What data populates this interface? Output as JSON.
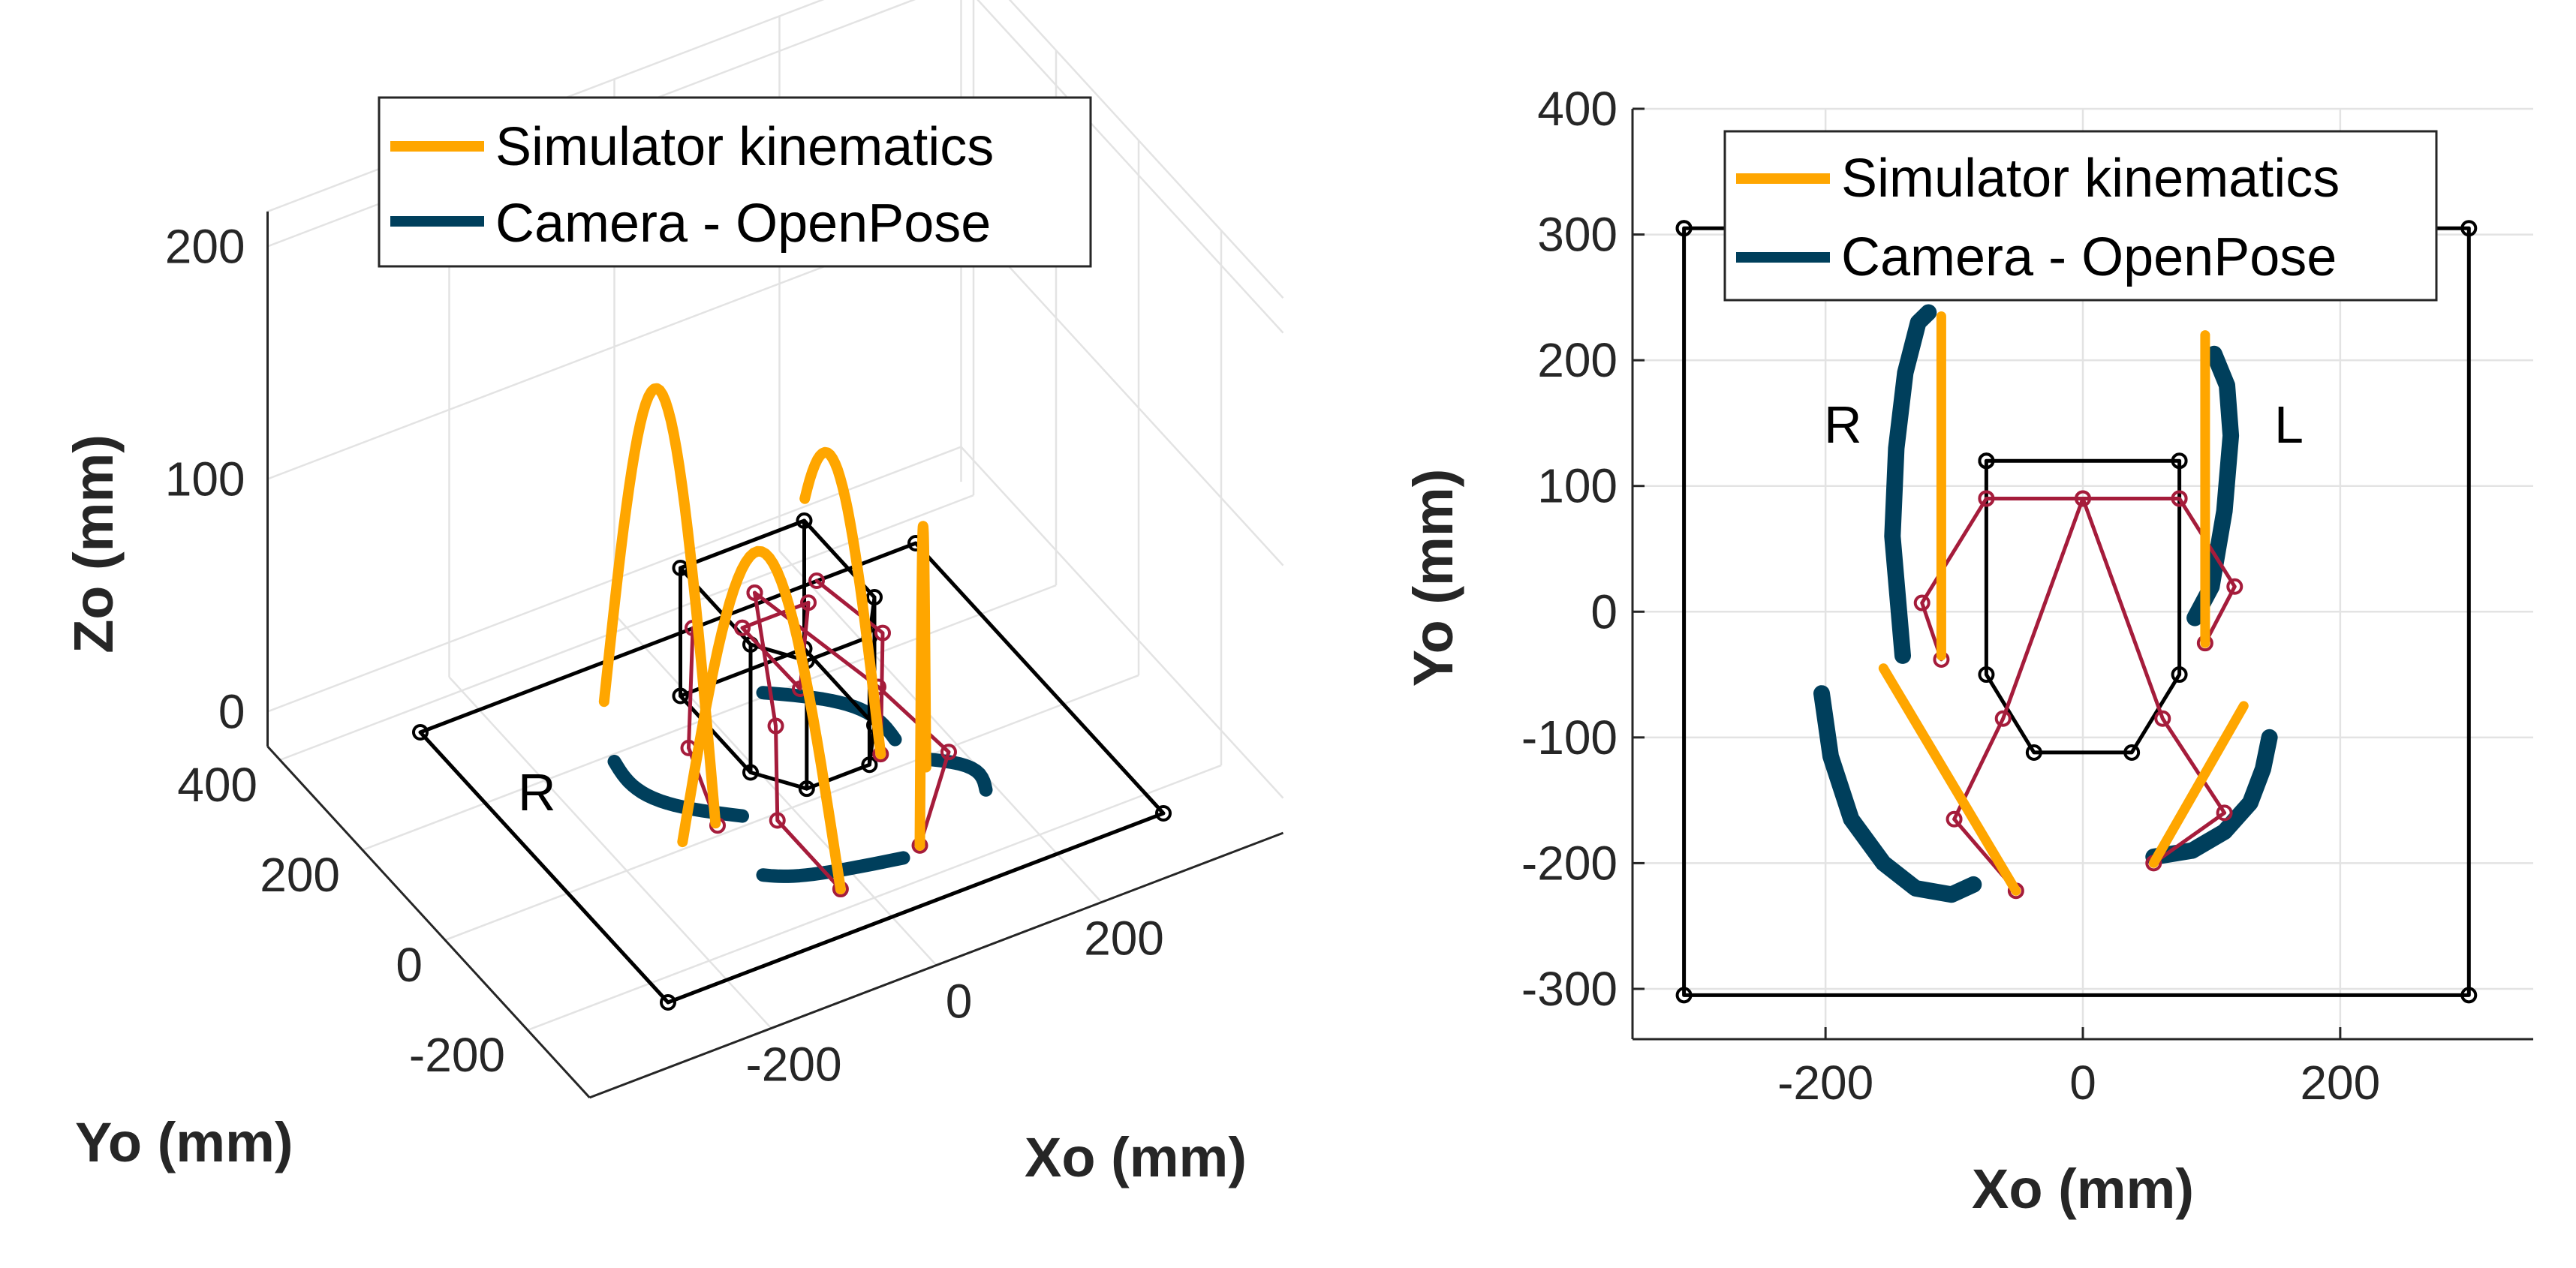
{
  "chart_data": [
    {
      "type": "line3d",
      "panel": "left",
      "view": "3-D perspective",
      "xlabel": "Xo (mm)",
      "ylabel": "Yo (mm)",
      "zlabel": "Zo (mm)",
      "x_ticks": [
        "-200",
        "0",
        "200"
      ],
      "y_ticks": [
        "-200",
        "0",
        "200",
        "400"
      ],
      "z_ticks": [
        "0",
        "100",
        "200"
      ],
      "grid": true,
      "legend": {
        "position": "top",
        "entries": [
          "Simulator kinematics",
          "Camera - OpenPose"
        ]
      },
      "annotations": [
        "R"
      ],
      "series": [
        {
          "name": "Simulator kinematics",
          "color": "#ffa600",
          "description": "arched foot swing trajectories, peak height about 160 mm"
        },
        {
          "name": "Camera - OpenPose",
          "color": "#003f5c",
          "description": "tracked foot trajectories near ground plane"
        },
        {
          "name": "Base frame",
          "color": "#000000"
        },
        {
          "name": "Legs",
          "color": "#a51c3b"
        }
      ]
    },
    {
      "type": "line",
      "panel": "right",
      "view": "top (XY plane)",
      "xlabel": "Xo (mm)",
      "ylabel": "Yo (mm)",
      "xlim": [
        -350,
        350
      ],
      "ylim": [
        -340,
        400
      ],
      "x_ticks": [
        "-200",
        "0",
        "200"
      ],
      "y_ticks": [
        "-300",
        "-200",
        "-100",
        "0",
        "100",
        "200",
        "300",
        "400"
      ],
      "grid": true,
      "legend": {
        "position": "top",
        "entries": [
          "Simulator kinematics",
          "Camera - OpenPose"
        ]
      },
      "annotations": [
        "R",
        "L"
      ],
      "series": [
        {
          "name": "Simulator kinematics",
          "color": "#ffa600",
          "segments": [
            [
              [
                -110,
                -35
              ],
              [
                -110,
                235
              ]
            ],
            [
              [
                95,
                -25
              ],
              [
                95,
                220
              ]
            ],
            [
              [
                -155,
                -45
              ],
              [
                -52,
                -222
              ]
            ],
            [
              [
                55,
                -200
              ],
              [
                125,
                -75
              ]
            ]
          ]
        },
        {
          "name": "Camera - OpenPose",
          "color": "#003f5c",
          "segments": [
            [
              [
                -140,
                -35
              ],
              [
                -148,
                60
              ],
              [
                -145,
                130
              ],
              [
                -138,
                190
              ],
              [
                -128,
                230
              ],
              [
                -120,
                238
              ]
            ],
            [
              [
                87,
                -5
              ],
              [
                100,
                20
              ],
              [
                110,
                80
              ],
              [
                115,
                140
              ],
              [
                112,
                180
              ],
              [
                102,
                205
              ]
            ],
            [
              [
                -203,
                -65
              ],
              [
                -196,
                -115
              ],
              [
                -180,
                -165
              ],
              [
                -155,
                -200
              ],
              [
                -130,
                -220
              ],
              [
                -102,
                -225
              ],
              [
                -85,
                -217
              ]
            ],
            [
              [
                55,
                -195
              ],
              [
                85,
                -190
              ],
              [
                110,
                -175
              ],
              [
                130,
                -152
              ],
              [
                140,
                -125
              ],
              [
                145,
                -100
              ]
            ]
          ]
        },
        {
          "name": "Base frame",
          "color": "#000000",
          "segments": [
            [
              [
                -310,
                305
              ],
              [
                300,
                305
              ],
              [
                300,
                -305
              ],
              [
                -310,
                -305
              ],
              [
                -310,
                305
              ]
            ]
          ]
        },
        {
          "name": "Platform",
          "color": "#000000",
          "segments": [
            [
              [
                -75,
                120
              ],
              [
                75,
                120
              ],
              [
                75,
                -50
              ],
              [
                38,
                -112
              ],
              [
                -38,
                -112
              ],
              [
                -75,
                -50
              ],
              [
                -75,
                120
              ]
            ]
          ]
        },
        {
          "name": "Legs",
          "color": "#a51c3b",
          "segments": [
            [
              [
                -75,
                90
              ],
              [
                75,
                90
              ]
            ],
            [
              [
                0,
                90
              ],
              [
                -62,
                -85
              ],
              [
                -100,
                -165
              ],
              [
                -52,
                -222
              ]
            ],
            [
              [
                0,
                90
              ],
              [
                62,
                -85
              ],
              [
                110,
                -160
              ],
              [
                55,
                -200
              ]
            ],
            [
              [
                -75,
                90
              ],
              [
                -125,
                7
              ],
              [
                -110,
                -38
              ]
            ],
            [
              [
                75,
                90
              ],
              [
                118,
                20
              ],
              [
                95,
                -25
              ]
            ]
          ]
        }
      ]
    }
  ]
}
